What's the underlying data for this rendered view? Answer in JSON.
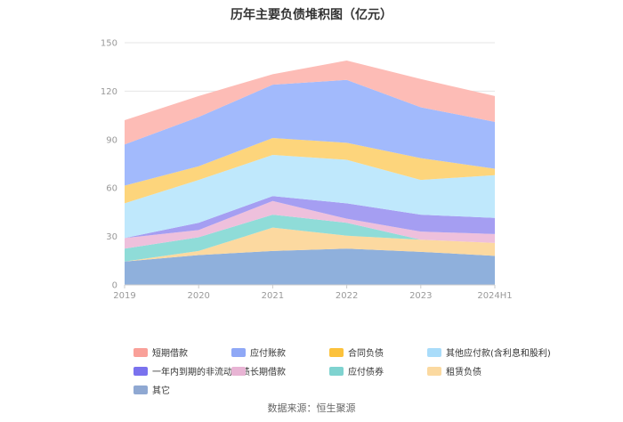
{
  "chart_data": {
    "type": "area",
    "stacked": true,
    "title": "历年主要负债堆积图（亿元）",
    "x": [
      "2019",
      "2020",
      "2021",
      "2022",
      "2023",
      "2024H1"
    ],
    "yticks": [
      0,
      30,
      60,
      90,
      120,
      150
    ],
    "ylim": [
      0,
      150
    ],
    "grid": true,
    "legend_position": "bottom",
    "series": [
      {
        "name": "其它",
        "color": "#8fb0dc",
        "values": [
          14.5,
          18.5,
          21,
          22.5,
          20.5,
          18
        ]
      },
      {
        "name": "租赁负债",
        "color": "#fcd9a0",
        "values": [
          0,
          2.5,
          14.5,
          8,
          7.5,
          8
        ]
      },
      {
        "name": "应付债券",
        "color": "#8fdcd8",
        "values": [
          8,
          8.5,
          8,
          8,
          0,
          0
        ]
      },
      {
        "name": "长期借款",
        "color": "#eec0dc",
        "values": [
          6.5,
          4.5,
          8.5,
          2.5,
          5,
          5.5
        ]
      },
      {
        "name": "一年内到期的非流动负债",
        "color": "#a59ef2",
        "values": [
          0,
          4.5,
          3,
          9.5,
          10.5,
          10
        ]
      },
      {
        "name": "其他应付款(含利息和股利)",
        "color": "#bfe8fc",
        "values": [
          21.5,
          26.5,
          25.5,
          27,
          21.5,
          26.5
        ]
      },
      {
        "name": "合同负债",
        "color": "#fdd57c",
        "values": [
          11,
          8.5,
          10.5,
          10.5,
          13.5,
          4
        ]
      },
      {
        "name": "应付账款",
        "color": "#a2bafc",
        "values": [
          25.5,
          30.5,
          33,
          39,
          31.5,
          29
        ]
      },
      {
        "name": "短期借款",
        "color": "#fdbcb6",
        "values": [
          15,
          13,
          6.5,
          12,
          17.5,
          16
        ]
      }
    ],
    "legend_order": [
      "短期借款",
      "应付账款",
      "合同负债",
      "其他应付款(含利息和股利)",
      "一年内到期的非流动负债",
      "长期借款",
      "应付债券",
      "租赁负债",
      "其它"
    ],
    "legend_swatch_colors": {
      "短期借款": "#f9a099",
      "应付账款": "#8fa8f6",
      "合同负债": "#fcc23c",
      "其他应付款(含利息和股利)": "#a9dcfa",
      "一年内到期的非流动负债": "#7a72ee",
      "长期借款": "#e8b4d4",
      "应付债券": "#7fd3d0",
      "租赁负债": "#fbd9a0",
      "其它": "#8fa8d2"
    }
  },
  "source": "数据来源：恒生聚源"
}
